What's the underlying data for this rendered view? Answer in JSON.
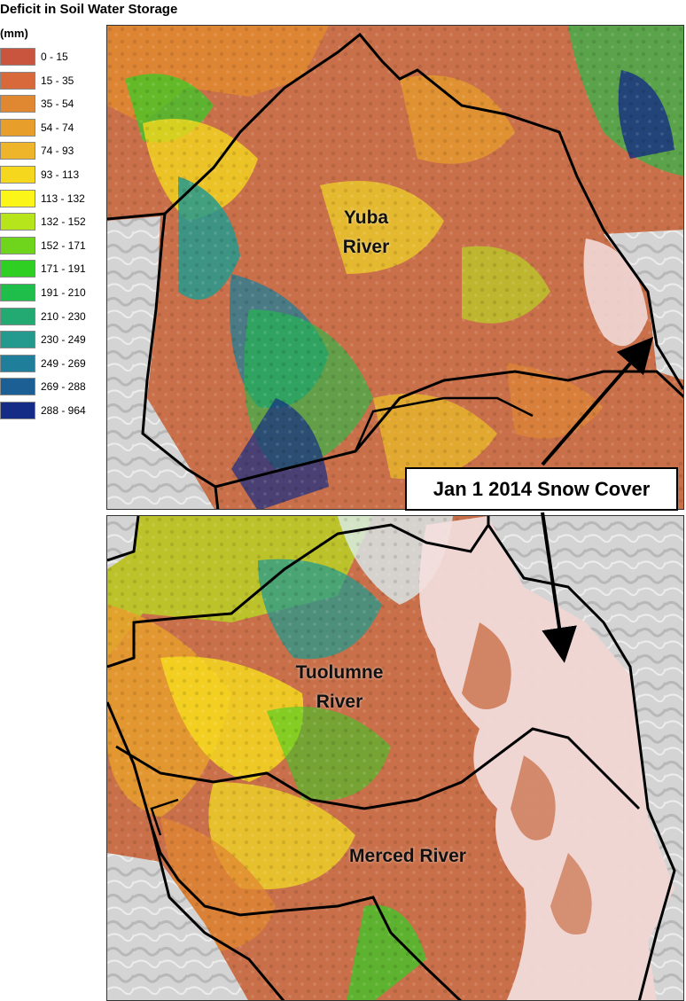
{
  "legend": {
    "title": "Deficit in Soil Water Storage",
    "units": "(mm)",
    "classes": [
      {
        "range": "0 - 15",
        "color": "#c9553f"
      },
      {
        "range": "15 - 35",
        "color": "#d8693a"
      },
      {
        "range": "35 - 54",
        "color": "#e08732"
      },
      {
        "range": "54 - 74",
        "color": "#e79e2b"
      },
      {
        "range": "74 - 93",
        "color": "#efb52a"
      },
      {
        "range": "93 - 113",
        "color": "#f5d81e"
      },
      {
        "range": "113 - 132",
        "color": "#fbf51a"
      },
      {
        "range": "132 - 152",
        "color": "#b7e51c"
      },
      {
        "range": "152 - 171",
        "color": "#6fd51c"
      },
      {
        "range": "171 - 191",
        "color": "#2fcf23"
      },
      {
        "range": "191 - 210",
        "color": "#1fbe4a"
      },
      {
        "range": "210 - 230",
        "color": "#22aa72"
      },
      {
        "range": "230 - 249",
        "color": "#249a8e"
      },
      {
        "range": "249 - 269",
        "color": "#1f7f9a"
      },
      {
        "range": "269 - 288",
        "color": "#1b5f95"
      },
      {
        "range": "288 - 964",
        "color": "#142c85"
      }
    ]
  },
  "maps": {
    "top": {
      "label_line1": "Yuba",
      "label_line2": "River"
    },
    "bottom": {
      "label1_line1": "Tuolumne",
      "label1_line2": "River",
      "label2": "Merced River"
    }
  },
  "callout": {
    "text": "Jan 1 2014 Snow Cover"
  },
  "colors": {
    "snow": "#f3dede",
    "hillshade": "#cfcfcf",
    "boundary": "#000000"
  }
}
